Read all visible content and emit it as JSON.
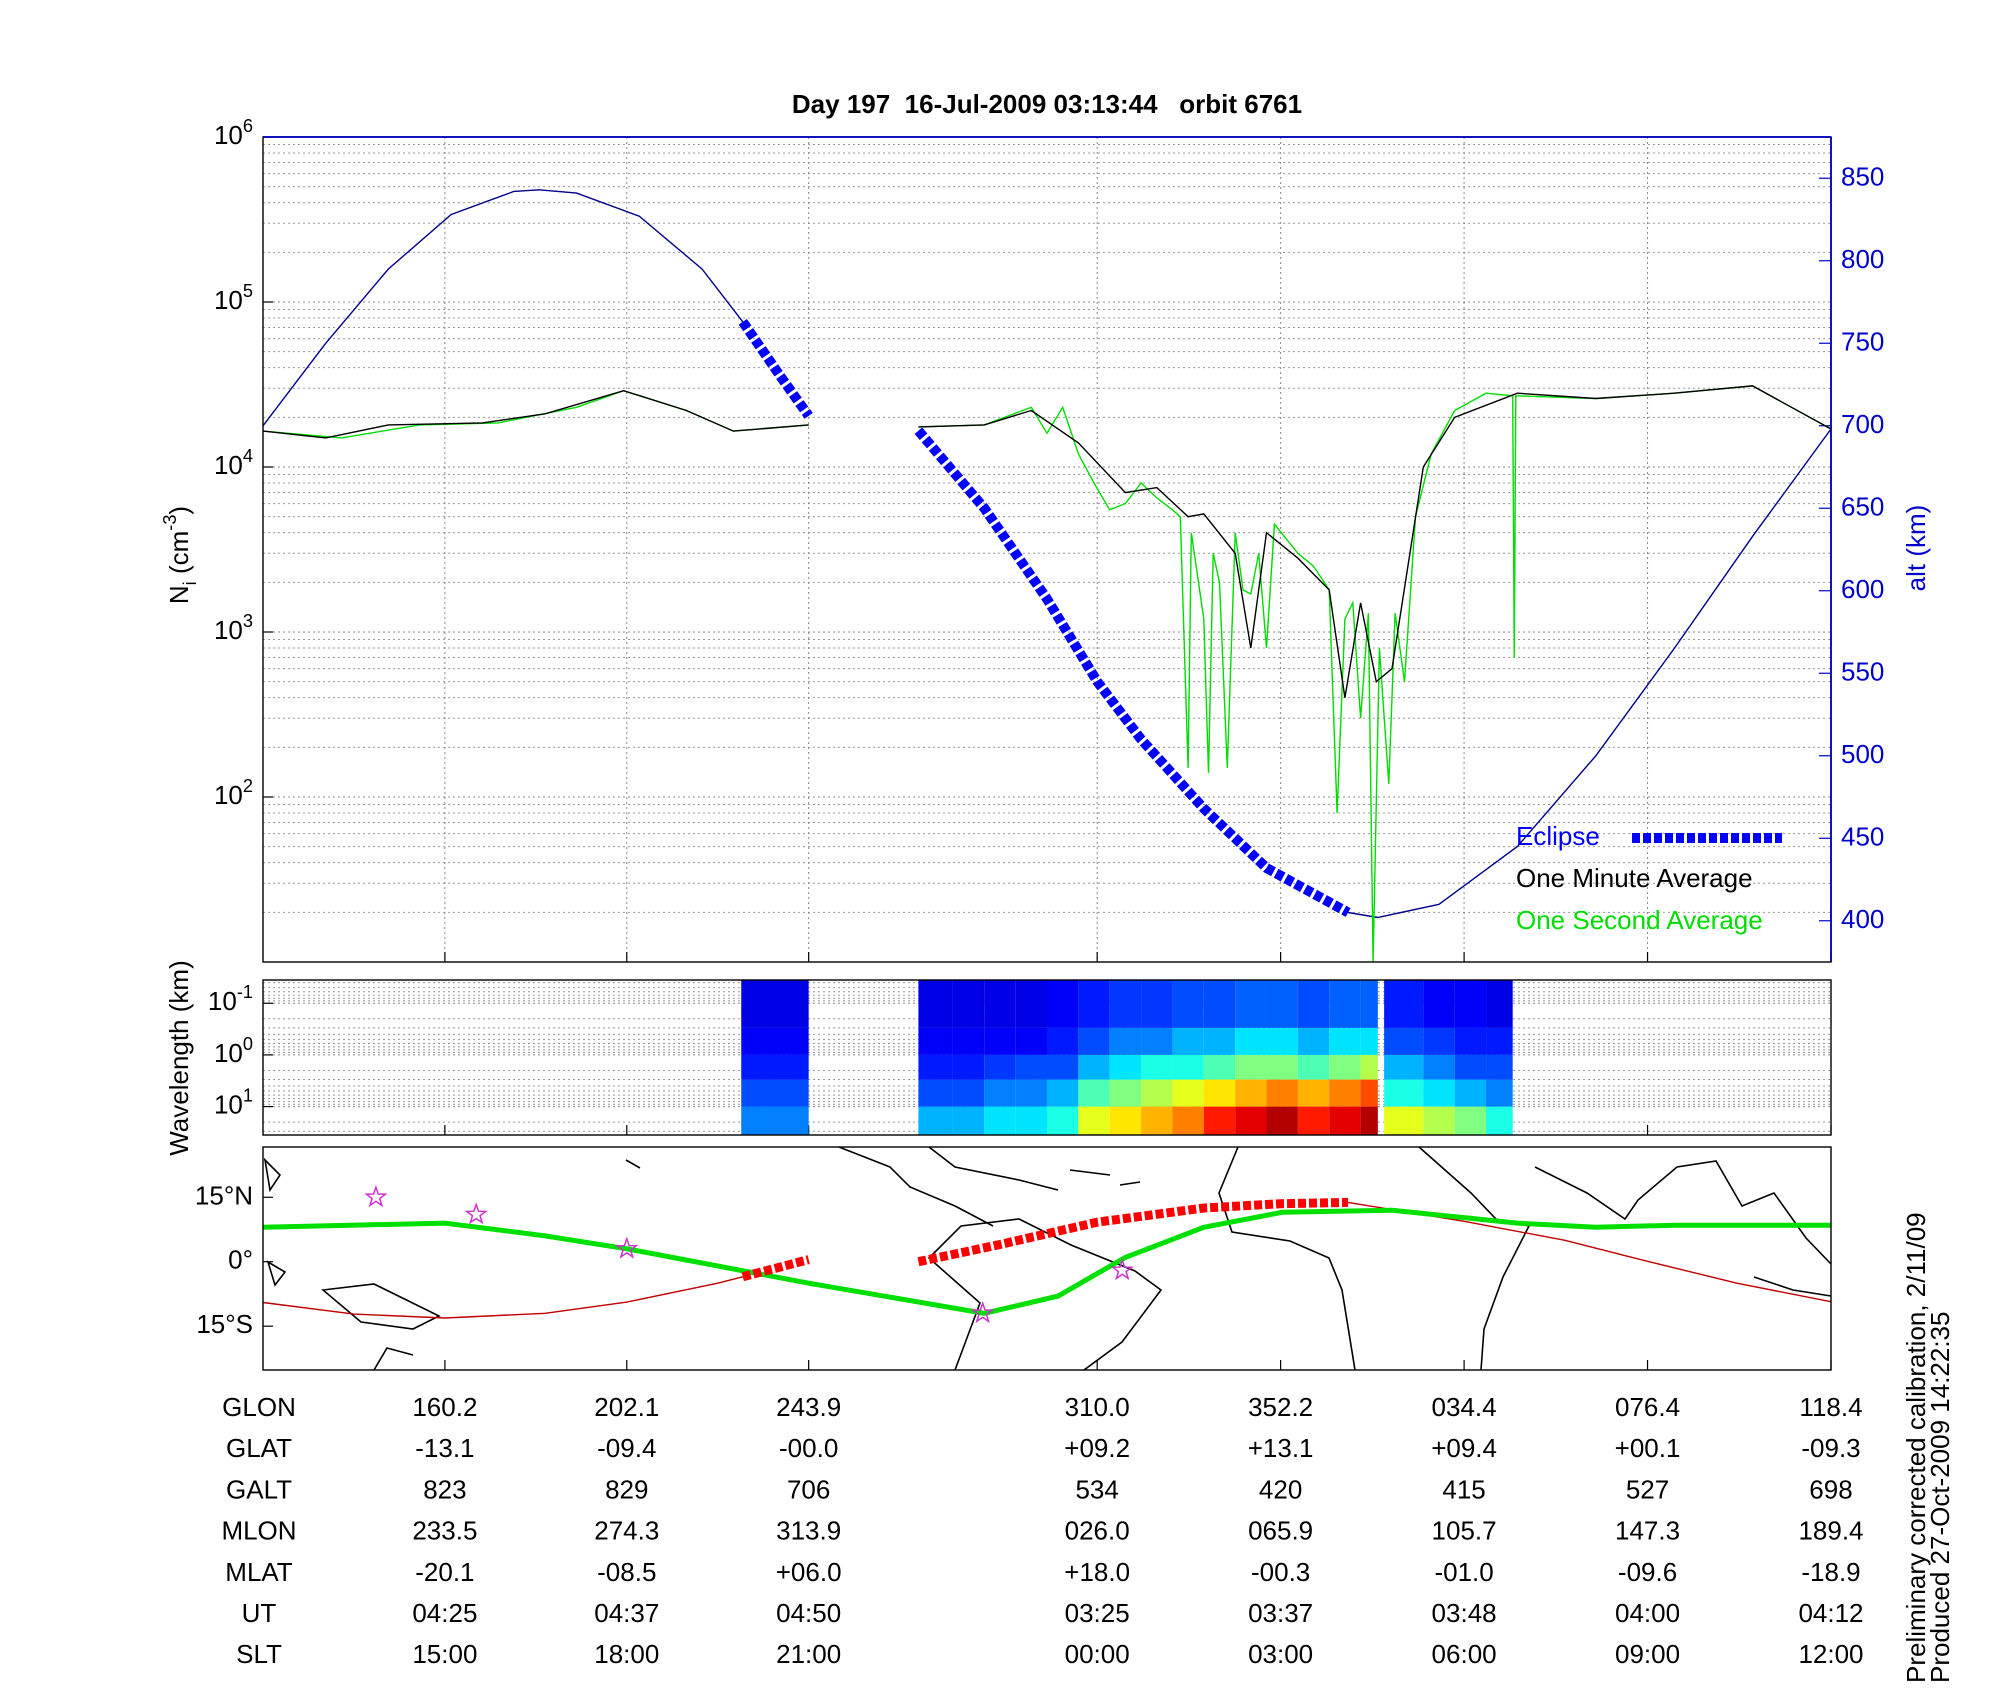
{
  "chart_data": [
    {
      "type": "line",
      "title": "Day 197  16-Jul-2009 03:13:44   orbit 6761",
      "ylabel": "N_i (cm^-3)",
      "y2label": "alt (km)",
      "xlim": [
        0,
        1
      ],
      "xticks": [
        0.116,
        0.232,
        0.348,
        0.532,
        0.649,
        0.766,
        0.883,
        1.0
      ],
      "yscale": "log",
      "ylim": [
        10,
        1000000
      ],
      "yticks": [
        {
          "value": 100,
          "label": "10^2"
        },
        {
          "value": 1000,
          "label": "10^3"
        },
        {
          "value": 10000,
          "label": "10^4"
        },
        {
          "value": 100000,
          "label": "10^5"
        },
        {
          "value": 1000000,
          "label": "10^6"
        }
      ],
      "y2lim": [
        375,
        875
      ],
      "y2ticks": [
        400,
        450,
        500,
        550,
        600,
        650,
        700,
        750,
        800,
        850
      ],
      "y2color": "#0000cc",
      "grid": true,
      "minor_grid": true,
      "legend": "lower right",
      "series": [
        {
          "name": "Eclipse",
          "color": "#0000ff",
          "axis": "y2",
          "style": "dashed",
          "x": [
            0.306,
            0.33,
            0.348,
            null,
            0.418,
            0.46,
            0.5,
            0.532,
            0.56,
            0.6,
            0.64,
            0.692
          ],
          "values": [
            763,
            730,
            706,
            null,
            697,
            650,
            595,
            545,
            510,
            468,
            432,
            405
          ]
        },
        {
          "name": "One Minute Average",
          "color": "#000000",
          "style": "line",
          "x": [
            0,
            0.04,
            0.08,
            0.14,
            0.18,
            0.23,
            0.27,
            0.3,
            0.348,
            null,
            0.418,
            0.46,
            0.49,
            0.52,
            0.55,
            0.57,
            0.59,
            0.6,
            0.62,
            0.63,
            0.64,
            0.66,
            0.68,
            0.69,
            0.7,
            0.71,
            0.72,
            0.74,
            0.76,
            0.8,
            0.85,
            0.9,
            0.95,
            1.0
          ],
          "values": [
            16500,
            15000,
            18000,
            18500,
            21000,
            29000,
            22000,
            16500,
            18000,
            null,
            17500,
            18000,
            22000,
            14000,
            7000,
            7500,
            5000,
            5200,
            3000,
            800,
            4000,
            2800,
            1800,
            400,
            1500,
            500,
            600,
            10000,
            20000,
            28000,
            26000,
            28000,
            31000,
            17000
          ]
        },
        {
          "name": "One Second Average",
          "color": "#00dd00",
          "style": "line",
          "x": [
            0,
            0.05,
            0.1,
            0.15,
            0.2,
            0.23,
            0.27,
            0.3,
            0.348,
            null,
            0.418,
            0.46,
            0.49,
            0.5,
            0.51,
            0.52,
            0.53,
            0.54,
            0.55,
            0.56,
            0.57,
            0.58,
            0.585,
            0.59,
            0.592,
            0.6,
            0.603,
            0.606,
            0.61,
            0.615,
            0.62,
            0.625,
            0.63,
            0.635,
            0.64,
            0.645,
            0.66,
            0.67,
            0.68,
            0.685,
            0.69,
            0.695,
            0.7,
            0.705,
            0.708,
            0.712,
            0.718,
            0.722,
            0.728,
            0.735,
            0.745,
            0.76,
            0.78,
            0.797,
            0.798,
            0.799,
            0.85,
            0.9,
            0.95,
            1.0
          ],
          "values": [
            16500,
            15000,
            18000,
            18500,
            23000,
            29000,
            22000,
            16500,
            18000,
            null,
            17500,
            18000,
            23000,
            16000,
            23000,
            12000,
            8000,
            5500,
            6000,
            8000,
            6500,
            5500,
            5000,
            150,
            4000,
            1200,
            140,
            3000,
            2000,
            150,
            4000,
            1800,
            1700,
            3000,
            800,
            4500,
            3000,
            2500,
            1800,
            80,
            1200,
            1500,
            300,
            1300,
            10,
            800,
            120,
            1300,
            500,
            5000,
            12000,
            22000,
            28000,
            27000,
            700,
            27000,
            26000,
            28000,
            31000,
            17000
          ]
        },
        {
          "color": "#00008b",
          "axis": "y2",
          "style": "line",
          "x": [
            0,
            0.04,
            0.08,
            0.12,
            0.16,
            0.176,
            0.2,
            0.24,
            0.28,
            0.306,
            null,
            0.692,
            0.711,
            0.75,
            0.8,
            0.85,
            0.9,
            0.95,
            1.0
          ],
          "values": [
            700,
            750,
            795,
            828,
            842,
            843,
            841,
            827,
            795,
            763,
            null,
            405,
            402,
            410,
            445,
            500,
            565,
            633,
            698
          ]
        }
      ]
    },
    {
      "type": "heatmap",
      "ylabel": "Wavelength (km)",
      "xlim": [
        0,
        1
      ],
      "xticks": [
        0.116,
        0.232,
        0.348,
        0.532,
        0.649,
        0.766,
        0.883,
        1.0
      ],
      "yscale": "log",
      "ylim": [
        35.5,
        0.0355
      ],
      "yticks": [
        {
          "value": 0.1,
          "label": "10^-1"
        },
        {
          "value": 1,
          "label": "10^0"
        },
        {
          "value": 10,
          "label": "10^1"
        }
      ],
      "minor_grid": true,
      "colormap": "jet",
      "xbins": [
        0.305,
        0.348,
        0.418,
        0.44,
        0.46,
        0.48,
        0.5,
        0.52,
        0.54,
        0.56,
        0.58,
        0.6,
        0.62,
        0.64,
        0.66,
        0.68,
        0.7,
        0.711,
        0.715,
        0.74,
        0.76,
        0.78,
        0.797
      ],
      "ybins": [
        35.5,
        10,
        3,
        1,
        0.3,
        0.0355
      ],
      "values": [
        [
          0.25,
          null,
          0.3,
          0.3,
          0.35,
          0.35,
          0.4,
          0.6,
          0.65,
          0.7,
          0.75,
          0.85,
          0.9,
          0.95,
          0.85,
          0.9,
          0.95,
          null,
          0.6,
          0.55,
          0.5,
          0.4
        ],
        [
          0.2,
          null,
          0.2,
          0.2,
          0.25,
          0.25,
          0.3,
          0.45,
          0.5,
          0.55,
          0.6,
          0.65,
          0.7,
          0.75,
          0.7,
          0.75,
          0.8,
          null,
          0.4,
          0.35,
          0.3,
          0.25
        ],
        [
          0.15,
          null,
          0.15,
          0.15,
          0.18,
          0.2,
          0.2,
          0.3,
          0.35,
          0.4,
          0.4,
          0.45,
          0.5,
          0.5,
          0.45,
          0.5,
          0.55,
          null,
          0.3,
          0.25,
          0.2,
          0.2
        ],
        [
          0.12,
          null,
          0.12,
          0.12,
          0.12,
          0.12,
          0.15,
          0.2,
          0.25,
          0.25,
          0.3,
          0.3,
          0.35,
          0.35,
          0.3,
          0.35,
          0.35,
          null,
          0.2,
          0.18,
          0.15,
          0.15
        ],
        [
          0.1,
          null,
          0.1,
          0.1,
          0.1,
          0.1,
          0.12,
          0.15,
          0.18,
          0.18,
          0.2,
          0.2,
          0.22,
          0.22,
          0.2,
          0.22,
          0.22,
          null,
          0.15,
          0.12,
          0.12,
          0.1
        ]
      ]
    },
    {
      "type": "map",
      "xlim": [
        0,
        1
      ],
      "xticks": [
        0.116,
        0.232,
        0.348,
        0.532,
        0.649,
        0.766,
        0.883,
        1.0
      ],
      "ylim": [
        -25.2,
        26.7
      ],
      "yticks": [
        {
          "value": 15,
          "label": "15°N"
        },
        {
          "value": 0,
          "label": "0°"
        },
        {
          "value": -15,
          "label": "15°S"
        }
      ],
      "series": [
        {
          "color": "#c00000",
          "style": "line",
          "x": [
            0,
            0.058,
            0.116,
            0.18,
            0.232,
            0.29,
            0.306,
            null,
            0.692,
            0.766,
            0.83,
            0.883,
            0.94,
            1.0
          ],
          "values": [
            -9.5,
            -12.2,
            -13.1,
            -12,
            -9.4,
            -5,
            -3.5,
            null,
            13.8,
            9.4,
            5,
            0.1,
            -5,
            -9.3
          ]
        },
        {
          "color": "#00e000",
          "style": "thick",
          "x": [
            0,
            0.116,
            0.18,
            0.232,
            0.348,
            0.46,
            0.507,
            0.55,
            0.6,
            0.65,
            0.72,
            0.8,
            0.85,
            0.9,
            1.0
          ],
          "values": [
            8,
            9,
            6,
            3,
            -5,
            -12,
            -8,
            1,
            8,
            11.5,
            12,
            9,
            8,
            8.5,
            8.5
          ]
        },
        {
          "color": "#ff0000",
          "style": "dashed",
          "x": [
            0.306,
            0.348,
            null,
            0.418,
            0.47,
            0.532,
            0.6,
            0.649,
            0.692
          ],
          "values": [
            -3.5,
            0.5,
            null,
            0,
            4,
            9.2,
            12.5,
            13.5,
            13.8
          ]
        },
        {
          "color": "#cc33cc",
          "style": "star",
          "x": [
            0.072,
            0.136,
            0.232,
            0.459,
            0.548
          ],
          "values": [
            15,
            11,
            3,
            -12,
            -2
          ]
        }
      ]
    }
  ],
  "table": {
    "rows": [
      {
        "label": "GLON",
        "values": [
          "160.2",
          "202.1",
          "243.9",
          "310.0",
          "352.2",
          "034.4",
          "076.4",
          "118.4"
        ]
      },
      {
        "label": "GLAT",
        "values": [
          "-13.1",
          "-09.4",
          "-00.0",
          "+09.2",
          "+13.1",
          "+09.4",
          "+00.1",
          "-09.3"
        ]
      },
      {
        "label": "GALT",
        "values": [
          "823",
          "829",
          "706",
          "534",
          "420",
          "415",
          "527",
          "698"
        ]
      },
      {
        "label": "MLON",
        "values": [
          "233.5",
          "274.3",
          "313.9",
          "026.0",
          "065.9",
          "105.7",
          "147.3",
          "189.4"
        ]
      },
      {
        "label": "MLAT",
        "values": [
          "-20.1",
          "-08.5",
          "+06.0",
          "+18.0",
          "-00.3",
          "-01.0",
          "-09.6",
          "-18.9"
        ]
      },
      {
        "label": "UT",
        "values": [
          "04:25",
          "04:37",
          "04:50",
          "03:25",
          "03:37",
          "03:48",
          "04:00",
          "04:12"
        ]
      },
      {
        "label": "SLT",
        "values": [
          "15:00",
          "18:00",
          "21:00",
          "00:00",
          "03:00",
          "06:00",
          "09:00",
          "12:00"
        ]
      }
    ]
  },
  "notes": [
    "Preliminary corrected calibration, 2/11/09",
    "Produced 27-Oct-2009 14:22:35"
  ]
}
